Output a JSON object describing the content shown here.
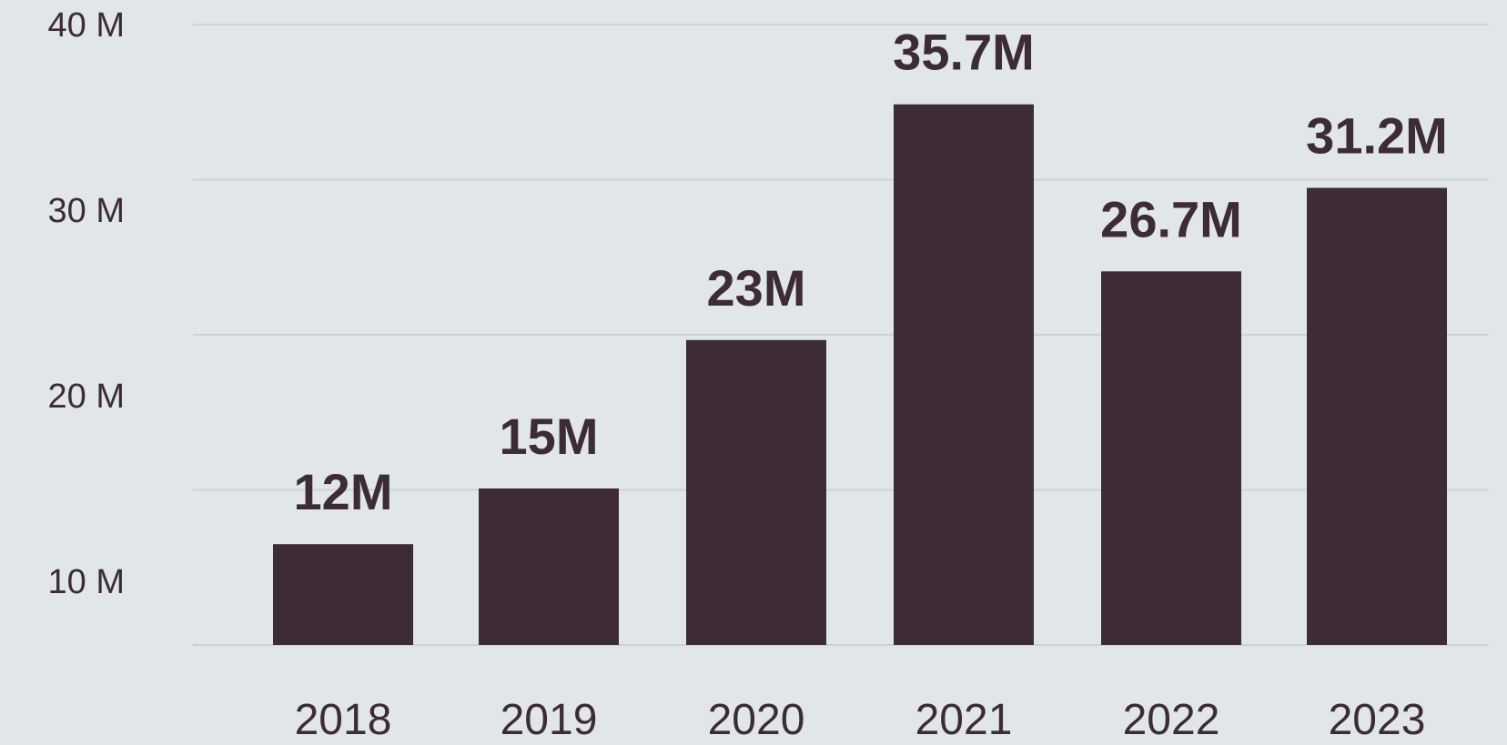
{
  "chart_data": {
    "type": "bar",
    "categories": [
      "2018",
      "2019",
      "2020",
      "2021",
      "2022",
      "2023"
    ],
    "values": [
      12,
      15,
      23,
      35.7,
      26.7,
      31.2
    ],
    "data_labels": [
      "12M",
      "15M",
      "23M",
      "35.7M",
      "26.7M",
      "31.2M"
    ],
    "y_ticks": [
      10,
      20,
      30,
      40
    ],
    "y_tick_labels": [
      "10 M",
      "20 M",
      "30 M",
      "40 M"
    ],
    "ylim": [
      0,
      40
    ],
    "grid": true,
    "legend": false,
    "title": "",
    "xlabel": "",
    "ylabel": ""
  },
  "colors": {
    "background": "#e1e6e9",
    "bar": "#3d2b37",
    "gridline": "#cdd1d4",
    "text": "#3d2b37"
  }
}
